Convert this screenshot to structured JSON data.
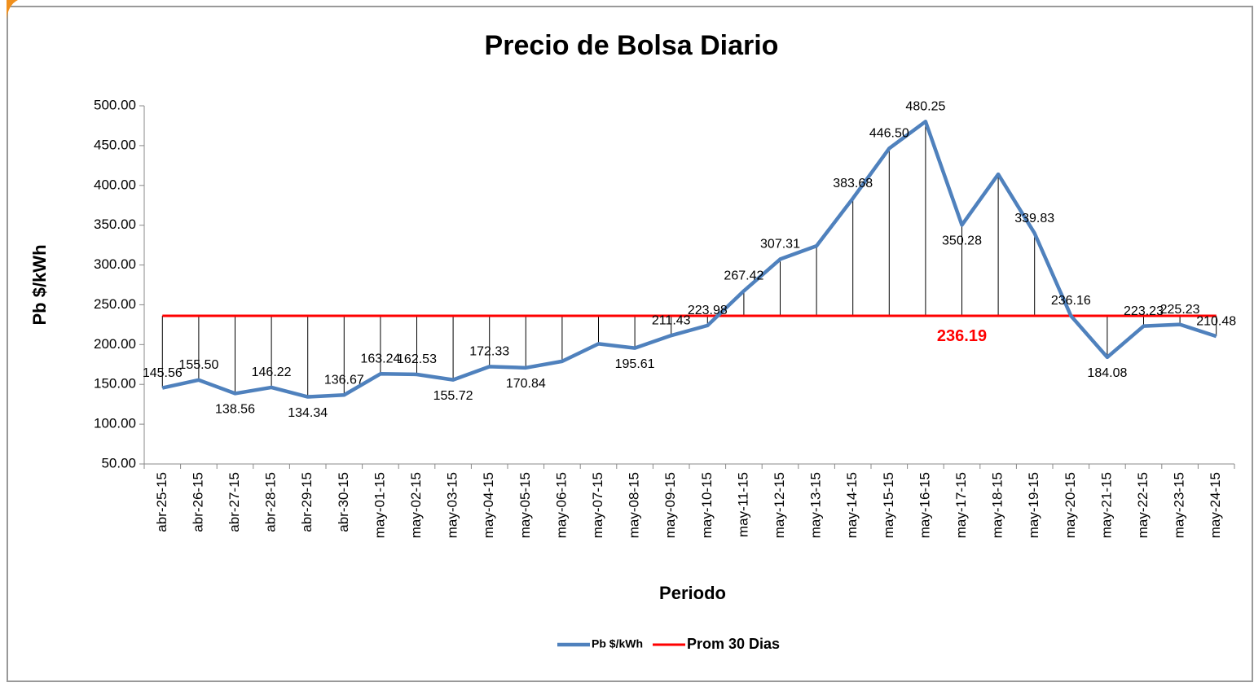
{
  "chart_data": {
    "type": "line",
    "title": "Precio de Bolsa Diario",
    "x_label": "Periodo",
    "y_label": "Pb $/kWh",
    "categories": [
      "abr-25-15",
      "abr-26-15",
      "abr-27-15",
      "abr-28-15",
      "abr-29-15",
      "abr-30-15",
      "may-01-15",
      "may-02-15",
      "may-03-15",
      "may-04-15",
      "may-05-15",
      "may-06-15",
      "may-07-15",
      "may-08-15",
      "may-09-15",
      "may-10-15",
      "may-11-15",
      "may-12-15",
      "may-13-15",
      "may-14-15",
      "may-15-15",
      "may-16-15",
      "may-17-15",
      "may-18-15",
      "may-19-15",
      "may-20-15",
      "may-21-15",
      "may-22-15",
      "may-23-15",
      "may-24-15"
    ],
    "series": [
      {
        "name": "Pb $/kWh",
        "color": "#4f81bd",
        "values": [
          145.56,
          155.5,
          138.56,
          146.22,
          134.34,
          136.67,
          163.24,
          162.53,
          155.72,
          172.33,
          170.84,
          179,
          201,
          195.61,
          211.43,
          223.98,
          267.42,
          307.31,
          324,
          383.68,
          446.5,
          480.25,
          350.28,
          414,
          339.83,
          236.16,
          184.08,
          223.23,
          225.23,
          210.48
        ],
        "value_labels": [
          "145.56",
          "155.50",
          "138.56",
          "146.22",
          "134.34",
          "136.67",
          "163.24",
          "162.53",
          "155.72",
          "172.33",
          "170.84",
          null,
          null,
          "195.61",
          "211.43",
          "223.98",
          "267.42",
          "307.31",
          null,
          "383.68",
          "446.50",
          "480.25",
          "350.28",
          null,
          "339.83",
          "236.16",
          "184.08",
          "223.23",
          "225.23",
          "210.48"
        ]
      },
      {
        "name": "Prom 30 Dias",
        "color": "#ff0000",
        "values": [
          236.19,
          236.19,
          236.19,
          236.19,
          236.19,
          236.19,
          236.19,
          236.19,
          236.19,
          236.19,
          236.19,
          236.19,
          236.19,
          236.19,
          236.19,
          236.19,
          236.19,
          236.19,
          236.19,
          236.19,
          236.19,
          236.19,
          236.19,
          236.19,
          236.19,
          236.19,
          236.19,
          236.19,
          236.19,
          236.19
        ],
        "value_labels": [
          null,
          null,
          null,
          null,
          null,
          null,
          null,
          null,
          null,
          null,
          null,
          null,
          null,
          null,
          null,
          null,
          null,
          null,
          null,
          null,
          null,
          null,
          "236.19",
          null,
          null,
          null,
          null,
          null,
          null,
          null
        ]
      }
    ],
    "ylim": [
      50,
      500
    ],
    "yticks": [
      {
        "value": 50,
        "label": "50.00"
      },
      {
        "value": 100,
        "label": "100.00"
      },
      {
        "value": 150,
        "label": "150.00"
      },
      {
        "value": 200,
        "label": "200.00"
      },
      {
        "value": 250,
        "label": "250.00"
      },
      {
        "value": 300,
        "label": "300.00"
      },
      {
        "value": 350,
        "label": "350.00"
      },
      {
        "value": 400,
        "label": "400.00"
      },
      {
        "value": 450,
        "label": "450.00"
      },
      {
        "value": 500,
        "label": "500.00"
      }
    ],
    "grid": false,
    "drop_lines": true,
    "legend": "bottom"
  }
}
